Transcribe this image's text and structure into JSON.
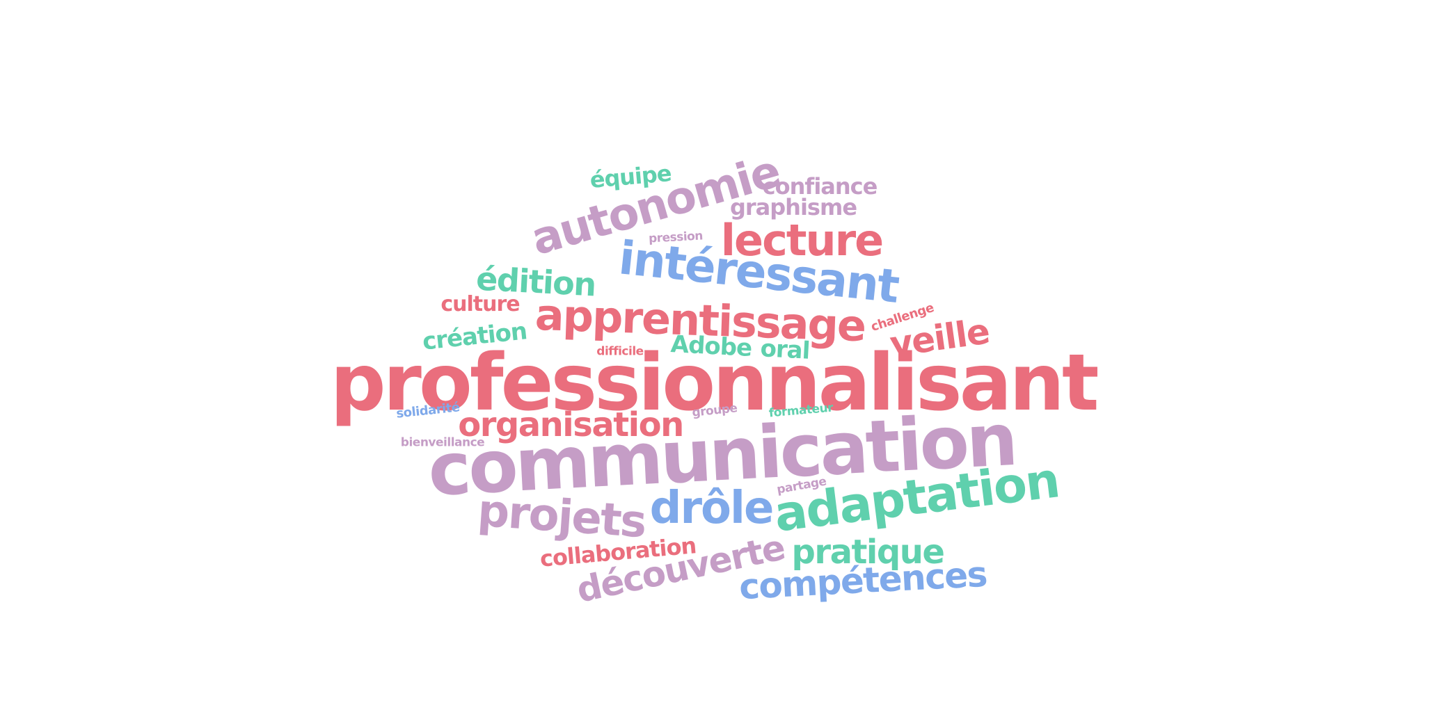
{
  "words": {
    "professionnalisant": "professionnalisant",
    "communication": "communication",
    "autonomie": "autonomie",
    "interessant": "intéressant",
    "apprentissage": "apprentissage",
    "lecture": "lecture",
    "adaptation": "adaptation",
    "projets": "projets",
    "drole": "drôle",
    "organisation": "organisation",
    "decouverte": "découverte",
    "competences": "compétences",
    "pratique": "pratique",
    "veille": "veille",
    "edition": "édition",
    "creation": "création",
    "culture": "culture",
    "confiance": "confiance",
    "graphisme": "graphisme",
    "equipe": "équipe",
    "collaboration": "collaboration",
    "adobe": "Adobe",
    "oral": "oral",
    "challenge": "challenge",
    "difficile": "difficile",
    "pression": "pression",
    "solidarite": "solidarité",
    "bienveillance": "bienveillance",
    "groupe": "groupe",
    "formateur": "formateur",
    "partage": "partage"
  },
  "colors": {
    "red": "#ea6e7d",
    "purple": "#c59dc6",
    "blue": "#7fa9ea",
    "green": "#5fd0ad"
  }
}
